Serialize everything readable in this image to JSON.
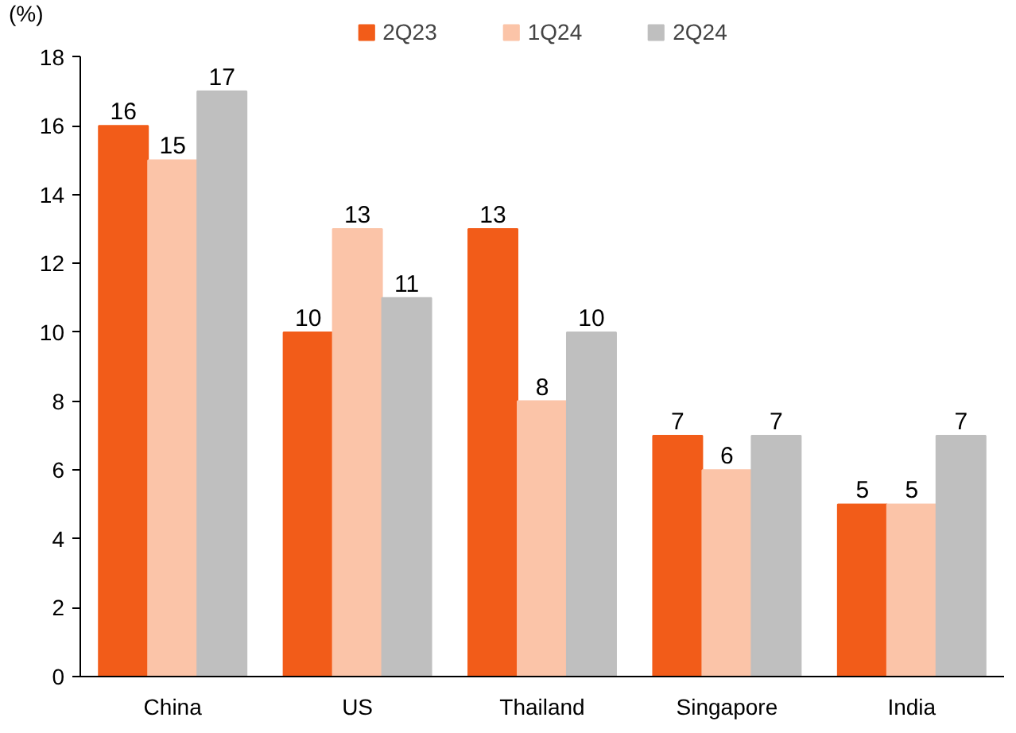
{
  "chart_data": {
    "type": "bar",
    "ylabel": "(%)",
    "categories": [
      "China",
      "US",
      "Thailand",
      "Singapore",
      "India"
    ],
    "series": [
      {
        "name": "2Q23",
        "color": "#f25c19",
        "values": [
          16,
          10,
          13,
          7,
          5
        ]
      },
      {
        "name": "1Q24",
        "color": "#fbc4a8",
        "values": [
          15,
          13,
          8,
          6,
          5
        ]
      },
      {
        "name": "2Q24",
        "color": "#bfbfbf",
        "values": [
          17,
          11,
          10,
          7,
          7
        ]
      }
    ],
    "ylim": [
      0,
      18
    ],
    "yticks": [
      0,
      2,
      4,
      6,
      8,
      10,
      12,
      14,
      16,
      18
    ],
    "grid": false,
    "legend": "top",
    "data_labels": true
  }
}
